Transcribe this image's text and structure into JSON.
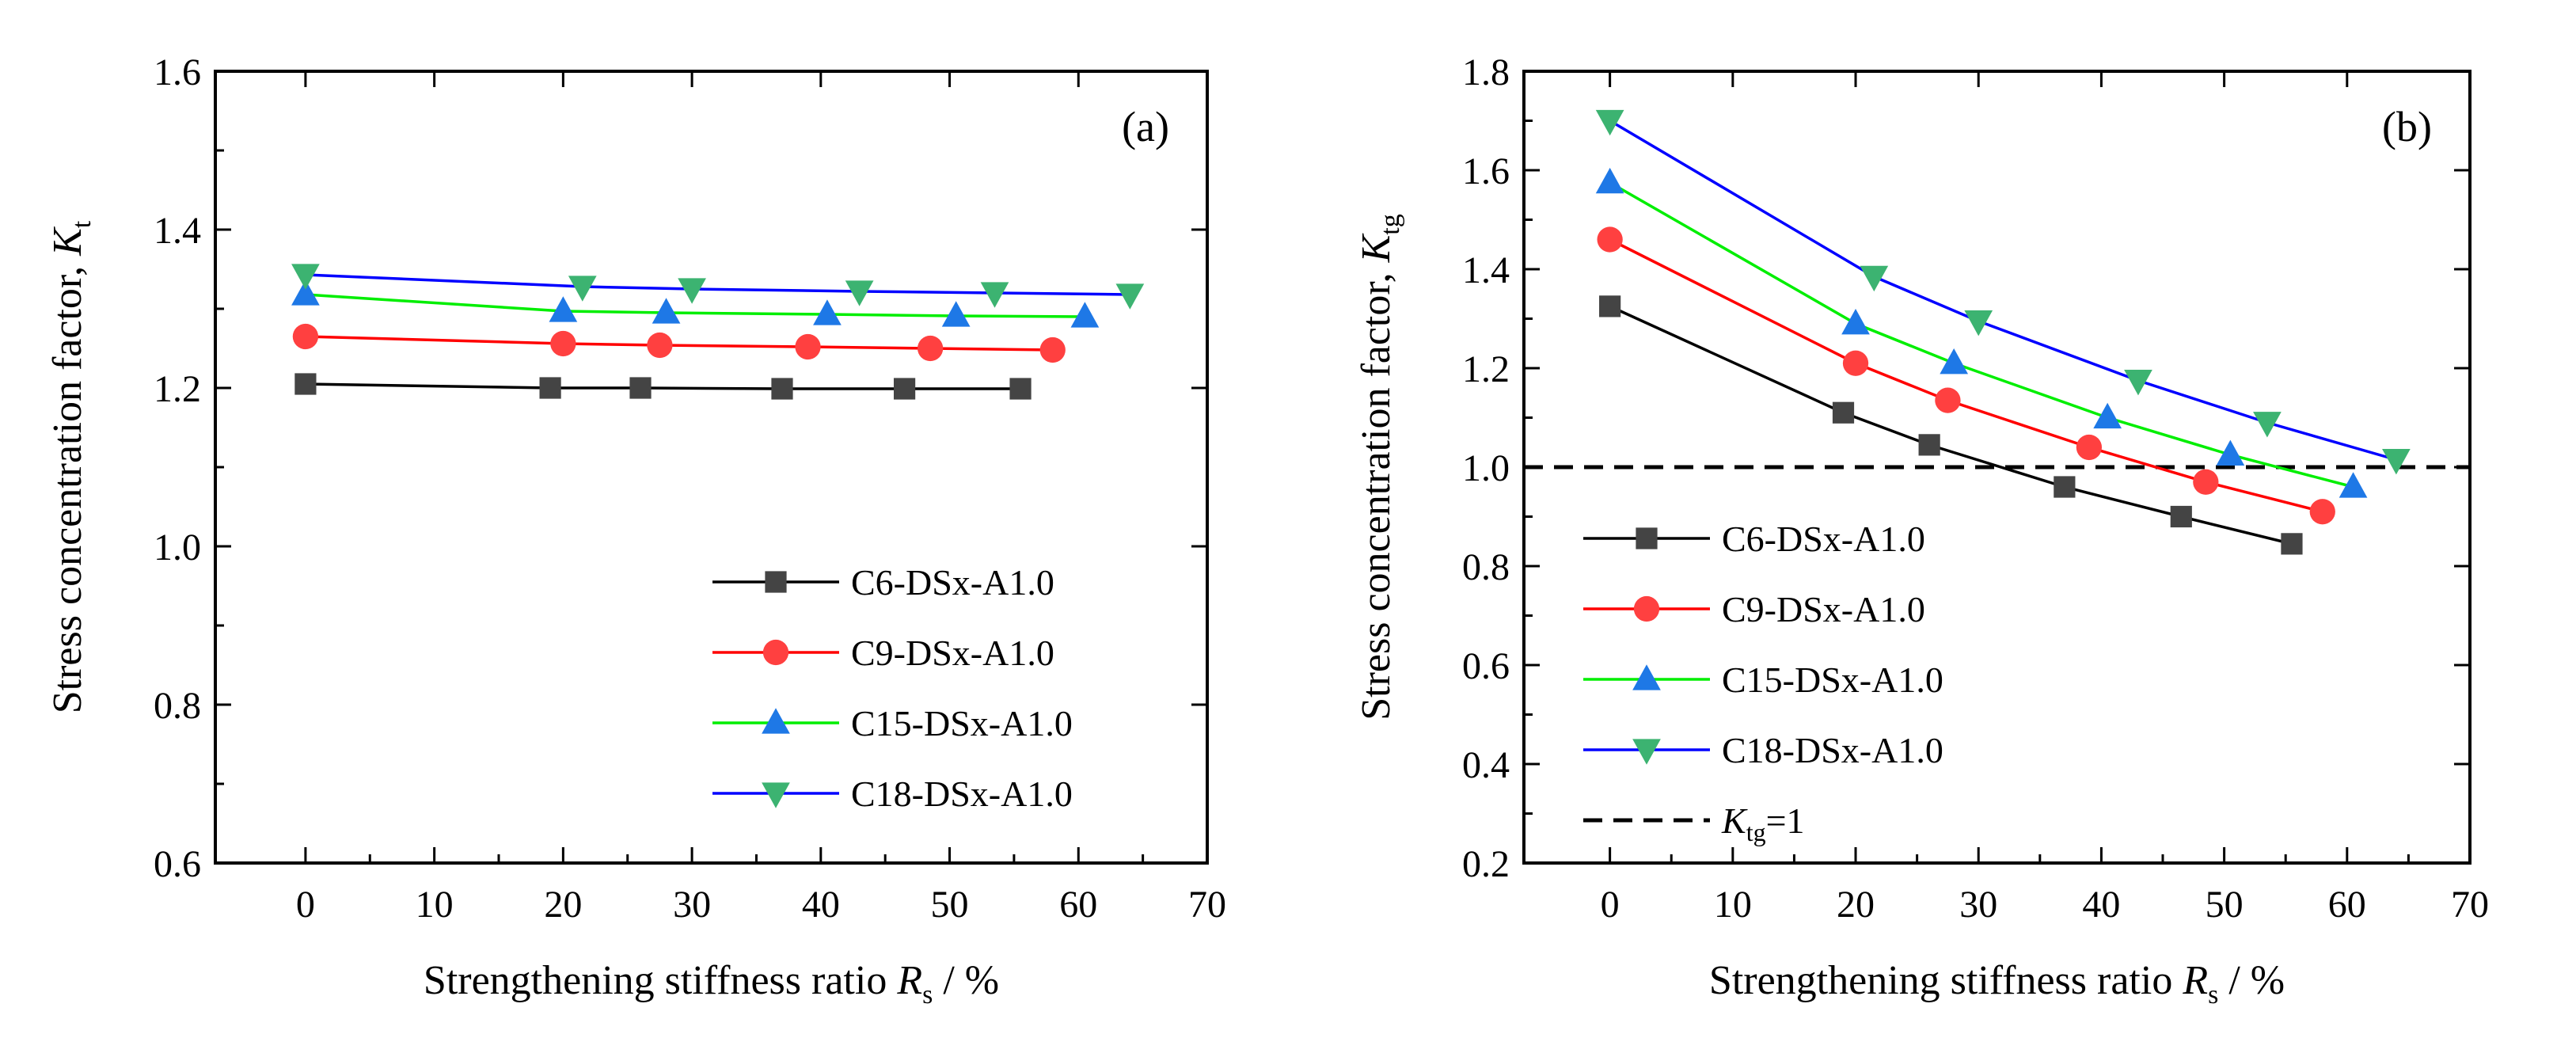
{
  "chart_data": [
    {
      "type": "line",
      "panel_label": "(a)",
      "xlabel": "Strengthening stiffness ratio",
      "xlabel_var": "R",
      "xlabel_sub": "s",
      "xlabel_unit": " / %",
      "ylabel": "Stress concentration factor,",
      "ylabel_var": "K",
      "ylabel_sub": "t",
      "xlim": [
        -7,
        70
      ],
      "ylim": [
        0.6,
        1.6
      ],
      "xticks": [
        0,
        10,
        20,
        30,
        40,
        50,
        60,
        70
      ],
      "yticks": [
        0.6,
        0.8,
        1.0,
        1.2,
        1.4,
        1.6
      ],
      "ytick_labels": [
        "0.6",
        "0.8",
        "1.0",
        "1.2",
        "1.4",
        "1.6"
      ],
      "legend_position": "lower-right",
      "reference_line": null,
      "series": [
        {
          "name": "C6-DSx-A1.0",
          "color": "#000000",
          "marker_color": "#444444",
          "marker": "square",
          "x": [
            0,
            19,
            26,
            37,
            46.5,
            55.5
          ],
          "y": [
            1.205,
            1.2,
            1.2,
            1.199,
            1.199,
            1.199
          ]
        },
        {
          "name": "C9-DSx-A1.0",
          "color": "#ff0000",
          "marker_color": "#ff4040",
          "marker": "circle",
          "x": [
            0,
            20,
            27.5,
            39,
            48.5,
            58
          ],
          "y": [
            1.265,
            1.256,
            1.254,
            1.252,
            1.25,
            1.248
          ]
        },
        {
          "name": "C15-DSx-A1.0",
          "color": "#00ee00",
          "marker_color": "#1e78e6",
          "marker": "triangle-up",
          "x": [
            0,
            20,
            28,
            40.5,
            50.5,
            60.5
          ],
          "y": [
            1.318,
            1.297,
            1.295,
            1.293,
            1.291,
            1.29
          ]
        },
        {
          "name": "C18-DSx-A1.0",
          "color": "#0000ff",
          "marker_color": "#3cb371",
          "marker": "triangle-down",
          "x": [
            0,
            21.5,
            30,
            43,
            53.5,
            64
          ],
          "y": [
            1.343,
            1.328,
            1.325,
            1.322,
            1.32,
            1.318
          ]
        }
      ]
    },
    {
      "type": "line",
      "panel_label": "(b)",
      "xlabel": "Strengthening stiffness ratio",
      "xlabel_var": "R",
      "xlabel_sub": "s",
      "xlabel_unit": " / %",
      "ylabel": "Stress concentration factor,",
      "ylabel_var": "K",
      "ylabel_sub": "tg",
      "xlim": [
        -7,
        70
      ],
      "ylim": [
        0.2,
        1.8
      ],
      "xticks": [
        0,
        10,
        20,
        30,
        40,
        50,
        60,
        70
      ],
      "yticks": [
        0.2,
        0.4,
        0.6,
        0.8,
        1.0,
        1.2,
        1.4,
        1.6,
        1.8
      ],
      "ytick_labels": [
        "0.2",
        "0.4",
        "0.6",
        "0.8",
        "1.0",
        "1.2",
        "1.4",
        "1.6",
        "1.8"
      ],
      "legend_position": "lower-left",
      "reference_line": {
        "y": 1.0,
        "style": "dashed",
        "label_var": "K",
        "label_sub": "tg",
        "label_rest": "=1"
      },
      "series": [
        {
          "name": "C6-DSx-A1.0",
          "color": "#000000",
          "marker_color": "#444444",
          "marker": "square",
          "x": [
            0,
            19,
            26,
            37,
            46.5,
            55.5
          ],
          "y": [
            1.325,
            1.11,
            1.045,
            0.96,
            0.9,
            0.845
          ]
        },
        {
          "name": "C9-DSx-A1.0",
          "color": "#ff0000",
          "marker_color": "#ff4040",
          "marker": "circle",
          "x": [
            0,
            20,
            27.5,
            39,
            48.5,
            58
          ],
          "y": [
            1.46,
            1.21,
            1.135,
            1.04,
            0.97,
            0.91
          ]
        },
        {
          "name": "C15-DSx-A1.0",
          "color": "#00ee00",
          "marker_color": "#1e78e6",
          "marker": "triangle-up",
          "x": [
            0,
            20,
            28,
            40.5,
            50.5,
            60.5
          ],
          "y": [
            1.575,
            1.29,
            1.21,
            1.1,
            1.025,
            0.96
          ]
        },
        {
          "name": "C18-DSx-A1.0",
          "color": "#0000ff",
          "marker_color": "#3cb371",
          "marker": "triangle-down",
          "x": [
            0,
            21.5,
            30,
            43,
            53.5,
            64
          ],
          "y": [
            1.7,
            1.385,
            1.295,
            1.175,
            1.09,
            1.015
          ]
        }
      ]
    }
  ]
}
